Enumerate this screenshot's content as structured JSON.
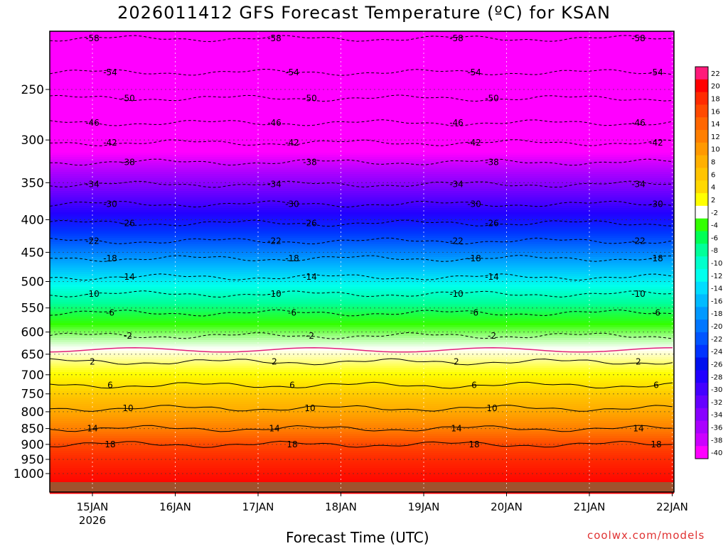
{
  "title": "2026011412 GFS Forecast Temperature (ºC) for KSAN",
  "credit": "coolwx.com/models",
  "chart_data": {
    "type": "heatmap",
    "title": "2026011412 GFS Forecast Temperature (ºC) for KSAN",
    "xlabel": "Forecast Time (UTC)",
    "ylabel": "",
    "y_scale": "log-pressure (hPa, inverted)",
    "ylim": [
      1000,
      200
    ],
    "y_ticks": [
      250,
      300,
      350,
      400,
      450,
      500,
      550,
      600,
      650,
      700,
      750,
      800,
      850,
      900,
      950,
      1000
    ],
    "x_ticks": [
      "15JAN",
      "16JAN",
      "17JAN",
      "18JAN",
      "19JAN",
      "20JAN",
      "21JAN",
      "22JAN"
    ],
    "x_subtick": "2026",
    "grid": true,
    "colorbar_labels": [
      "22",
      "20",
      "18",
      "16",
      "14",
      "12",
      "10",
      "8",
      "6",
      "4",
      "2",
      "-2",
      "-4",
      "-6",
      "-8",
      "-10",
      "-12",
      "-14",
      "-16",
      "-18",
      "-20",
      "-22",
      "-24",
      "-26",
      "-28",
      "-30",
      "-32",
      "-34",
      "-36",
      "-38",
      "-40"
    ],
    "colorbar_colors": [
      "#ff1a7a",
      "#ff0000",
      "#ff2b00",
      "#ff4a00",
      "#ff6600",
      "#ff7f00",
      "#ff9900",
      "#ffb000",
      "#ffc400",
      "#ffd800",
      "#ffff00",
      "#ffffff",
      "#33ff00",
      "#00ff55",
      "#00ff99",
      "#00ffcc",
      "#00ffee",
      "#00ddff",
      "#00bbff",
      "#0099ff",
      "#0077ff",
      "#0055ff",
      "#0033ff",
      "#0011ee",
      "#2200ff",
      "#4400ff",
      "#6600ff",
      "#8800ff",
      "#aa00ff",
      "#cc00ff",
      "#ff00ff"
    ],
    "contours": [
      {
        "temp": -58,
        "pressure": 208,
        "x": [
          0,
          0.4,
          1,
          2,
          3,
          4,
          5,
          6,
          6.7
        ]
      },
      {
        "temp": -54,
        "pressure": 235,
        "x": [
          0,
          1,
          2,
          3,
          4,
          5,
          6,
          6.7
        ]
      },
      {
        "temp": -50,
        "pressure": 258,
        "x": [
          0,
          1,
          2,
          3,
          4,
          5,
          6,
          6.7
        ]
      },
      {
        "temp": -46,
        "pressure": 282,
        "x": [
          0,
          1,
          2,
          3,
          4,
          5,
          6,
          6.7
        ]
      },
      {
        "temp": -42,
        "pressure": 303,
        "x": [
          0,
          1,
          2,
          3,
          4,
          5,
          6,
          6.7
        ]
      },
      {
        "temp": -38,
        "pressure": 325,
        "x": [
          0,
          1,
          2,
          3,
          4,
          5,
          6,
          6.7
        ]
      },
      {
        "temp": -34,
        "pressure": 352,
        "x": [
          0,
          1,
          2,
          3,
          4,
          5,
          6,
          6.7
        ]
      },
      {
        "temp": -30,
        "pressure": 378,
        "x": [
          0,
          1,
          2,
          3,
          4,
          5,
          6,
          6.7
        ]
      },
      {
        "temp": -26,
        "pressure": 405,
        "x": [
          0,
          1,
          2,
          3,
          4,
          5,
          6,
          6.7
        ]
      },
      {
        "temp": -22,
        "pressure": 432,
        "x": [
          0,
          1,
          2,
          3,
          4,
          5,
          6,
          6.7
        ]
      },
      {
        "temp": -18,
        "pressure": 460,
        "x": [
          0,
          1,
          2,
          3,
          4,
          5,
          6,
          6.7
        ]
      },
      {
        "temp": -14,
        "pressure": 492,
        "x": [
          0,
          1,
          2,
          3,
          4,
          5,
          6,
          6.7
        ]
      },
      {
        "temp": -10,
        "pressure": 523,
        "x": [
          0,
          1,
          2,
          3,
          4,
          5,
          6,
          6.7
        ]
      },
      {
        "temp": -6,
        "pressure": 560,
        "x": [
          0,
          1,
          2,
          3,
          4,
          5,
          6,
          6.7
        ]
      },
      {
        "temp": -2,
        "pressure": 608,
        "x": [
          0,
          1,
          2,
          3,
          4,
          5,
          6,
          6.7
        ]
      },
      {
        "temp": 2,
        "pressure": 668,
        "x": [
          0,
          1,
          2,
          3,
          4,
          5,
          6,
          6.7
        ]
      },
      {
        "temp": 6,
        "pressure": 727,
        "x": [
          0,
          1,
          2,
          3,
          4,
          5,
          6,
          6.7
        ]
      },
      {
        "temp": 10,
        "pressure": 790,
        "x": [
          0,
          1,
          2,
          3,
          4,
          5,
          6,
          6.7
        ]
      },
      {
        "temp": 14,
        "pressure": 850,
        "x": [
          0,
          1,
          2,
          3,
          4,
          5,
          6,
          6.7
        ]
      },
      {
        "temp": 18,
        "pressure": 900,
        "x": [
          0,
          1,
          2,
          3,
          4,
          5,
          6,
          6.7
        ]
      }
    ]
  }
}
